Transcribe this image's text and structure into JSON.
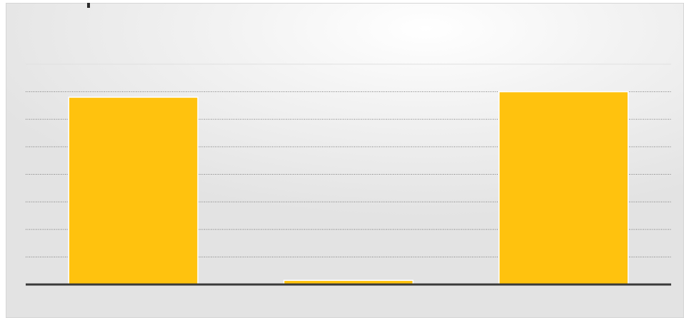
{
  "chart_data": {
    "type": "bar",
    "categories": [
      "",
      "",
      ""
    ],
    "values": [
      6.8,
      0.15,
      7.0
    ],
    "ylim": [
      0,
      8
    ],
    "grid": true,
    "legend": "none"
  },
  "colors": {
    "bar": "#FFC20E",
    "bar_stroke": "#ffffff",
    "axis": "#3a3a3a",
    "grid": "#7a7a7a",
    "grid_top": "#e0e0e0"
  }
}
